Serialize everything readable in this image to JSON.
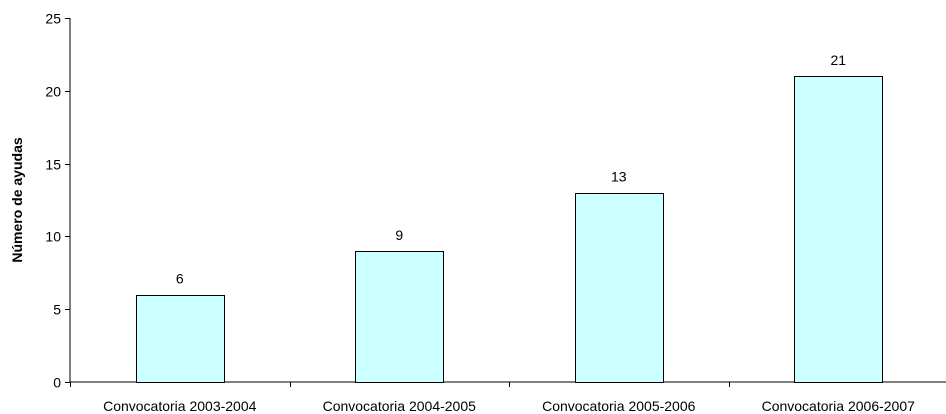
{
  "chart_data": {
    "type": "bar",
    "title": "",
    "xlabel": "",
    "ylabel": "Número de ayudas",
    "categories": [
      "Convocatoria 2003-2004",
      "Convocatoria 2004-2005",
      "Convocatoria 2005-2006",
      "Convocatoria 2006-2007"
    ],
    "values": [
      6,
      9,
      13,
      21
    ],
    "data_labels": [
      "6",
      "9",
      "13",
      "21"
    ],
    "ylim": [
      0,
      25
    ],
    "yticks": [
      0,
      5,
      10,
      15,
      20,
      25
    ],
    "ytick_labels": [
      "0",
      "5",
      "10",
      "15",
      "20",
      "25"
    ],
    "grid": false,
    "legend": "none",
    "colors": {
      "bar_fill": "#ccffff",
      "bar_stroke": "#000000",
      "axis": "#000000"
    }
  }
}
